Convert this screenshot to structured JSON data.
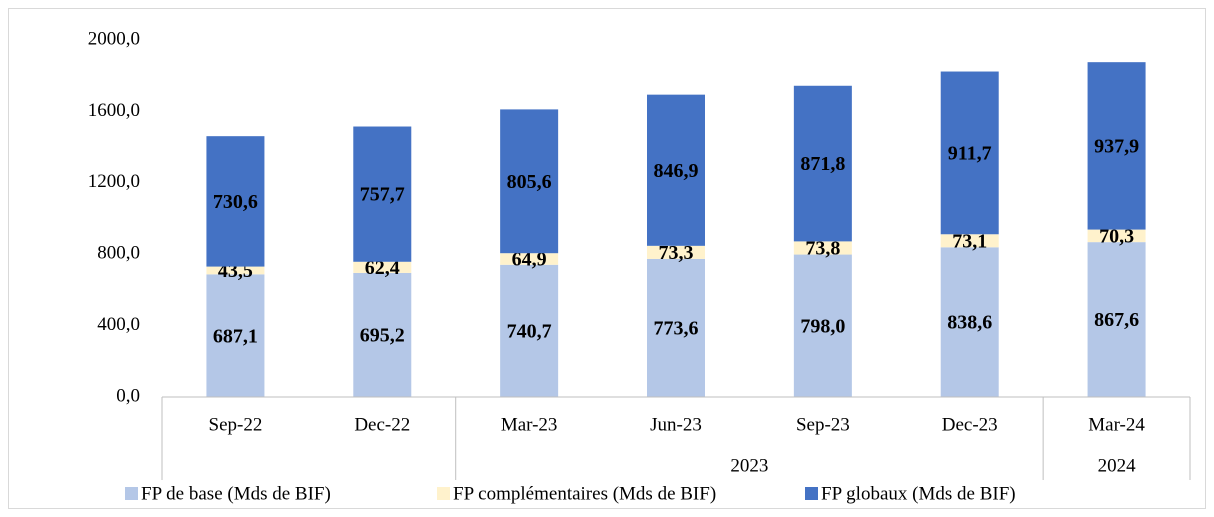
{
  "chart_data": {
    "type": "stacked-bar",
    "categories": [
      "Sep-22",
      "Dec-22",
      "Mar-23",
      "Jun-23",
      "Sep-23",
      "Dec-23",
      "Mar-24"
    ],
    "x_groups": [
      {
        "label": null,
        "span": 2
      },
      {
        "label": "2023",
        "span": 4
      },
      {
        "label": "2024",
        "span": 1
      }
    ],
    "series": [
      {
        "name": "FP de base (Mds de BIF)",
        "color": "#b4c7e7",
        "values": [
          687.1,
          695.2,
          740.7,
          773.6,
          798.0,
          838.6,
          867.6
        ],
        "value_labels": [
          "687,1",
          "695,2",
          "740,7",
          "773,6",
          "798,0",
          "838,6",
          "867,6"
        ]
      },
      {
        "name": "FP complémentaires (Mds de BIF)",
        "color": "#fff2cc",
        "values": [
          43.5,
          62.4,
          64.9,
          73.3,
          73.8,
          73.1,
          70.3
        ],
        "value_labels": [
          "43,5",
          "62,4",
          "64,9",
          "73,3",
          "73,8",
          "73,1",
          "70,3"
        ]
      },
      {
        "name": "FP globaux (Mds de BIF)",
        "color": "#4472c4",
        "values": [
          730.6,
          757.7,
          805.6,
          846.9,
          871.8,
          911.7,
          937.9
        ],
        "value_labels": [
          "730,6",
          "757,7",
          "805,6",
          "846,9",
          "871,8",
          "911,7",
          "937,9"
        ]
      }
    ],
    "ylim": [
      0,
      2000
    ],
    "yticks": [
      {
        "value": 0,
        "label": "0,0"
      },
      {
        "value": 400,
        "label": "400,0"
      },
      {
        "value": 800,
        "label": "800,0"
      },
      {
        "value": 1200,
        "label": "1200,0"
      },
      {
        "value": 1600,
        "label": "1600,0"
      },
      {
        "value": 2000,
        "label": "2000,0"
      }
    ],
    "grid": false,
    "legend": "bottom"
  }
}
